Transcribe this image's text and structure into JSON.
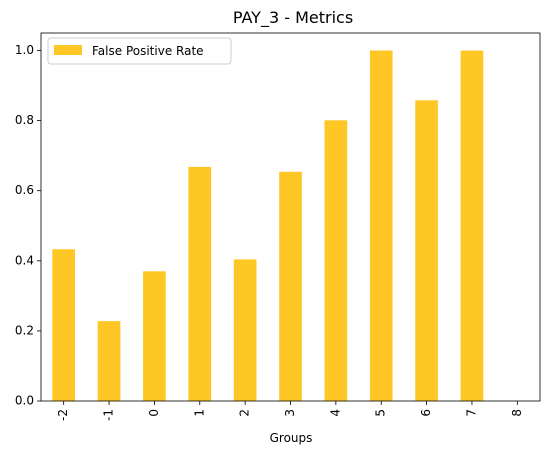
{
  "chart_data": {
    "type": "bar",
    "title": "PAY_3 - Metrics",
    "xlabel": "Groups",
    "ylabel": "",
    "categories": [
      "-2",
      "-1",
      "0",
      "1",
      "2",
      "3",
      "4",
      "5",
      "6",
      "7",
      "8"
    ],
    "series": [
      {
        "name": "False Positive Rate",
        "values": [
          0.433,
          0.228,
          0.37,
          0.668,
          0.404,
          0.654,
          0.801,
          1.0,
          0.858,
          1.0,
          0.0
        ],
        "color": "#FFC726"
      }
    ],
    "ylim": [
      0,
      1.05
    ],
    "yticks": [
      "0.0",
      "0.2",
      "0.4",
      "0.6",
      "0.8",
      "1.0"
    ],
    "legend": "top-left",
    "grid": false
  }
}
